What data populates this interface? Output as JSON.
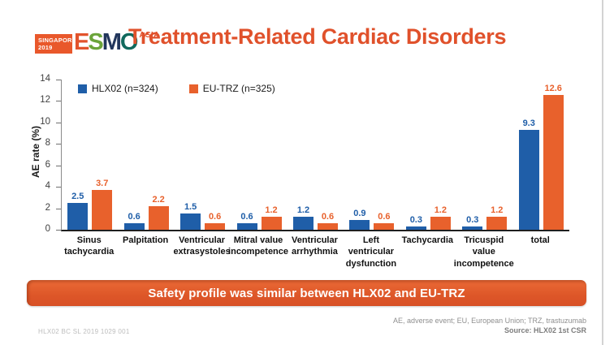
{
  "logo": {
    "badge_top": "SINGAPORE",
    "badge_year": "2019",
    "letter_e": "E",
    "letter_s": "S",
    "letter_m": "M",
    "letter_o": "O",
    "region": "ASIA"
  },
  "title": "Treatment-Related Cardiac Disorders",
  "chart_data": {
    "type": "bar",
    "title": "",
    "categories": [
      "Sinus tachycardia",
      "Palpitation",
      "Ventricular extrasystoles",
      "Mitral value incompetence",
      "Ventricular arrhythmia",
      "Left ventricular dysfunction",
      "Tachycardia",
      "Tricuspid value incompetence",
      "total"
    ],
    "series": [
      {
        "name": "HLX02 (n=324)",
        "color": "#1f5ea8",
        "values": [
          2.5,
          0.6,
          1.5,
          0.6,
          1.2,
          0.9,
          0.3,
          0.3,
          9.3
        ]
      },
      {
        "name": "EU-TRZ (n=325)",
        "color": "#e8612c",
        "values": [
          3.7,
          2.2,
          0.6,
          1.2,
          0.6,
          0.6,
          1.2,
          1.2,
          12.6
        ]
      }
    ],
    "xlabel": "",
    "ylabel": "AE rate (%)",
    "ylim": [
      0,
      14
    ],
    "yticks": [
      0,
      2,
      4,
      6,
      8,
      10,
      12,
      14
    ],
    "grid": false,
    "legend_position": "top-left",
    "data_labels": true
  },
  "banner": {
    "text": "Safety profile was similar between HLX02 and EU-TRZ"
  },
  "footer": {
    "slide_code": "HLX02 BC SL 2019 1029 001",
    "abbreviations": "AE, adverse event; EU, European Union; TRZ, trastuzumab",
    "source": "Source: HLX02 1st CSR"
  },
  "colors": {
    "title_orange": "#e0512b",
    "bar_blue": "#1f5ea8",
    "bar_orange": "#e8612c",
    "banner_orange": "#dd5628",
    "esmo_orange": "#e2532c",
    "esmo_green": "#6ba43a",
    "esmo_navy": "#22365c",
    "esmo_teal": "#11695d"
  }
}
